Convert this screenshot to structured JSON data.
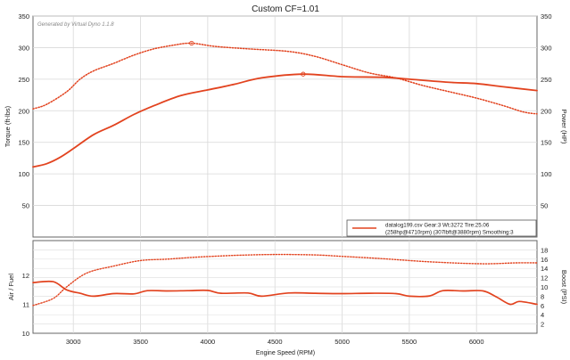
{
  "chart_data": [
    {
      "type": "line",
      "title": "Custom CF=1.01",
      "watermark": "Generated by Virtual Dyno 1.1.8",
      "ylabel_left": "Torque (ft-lbs)",
      "ylabel_right": "Power (HP)",
      "xlim": [
        2700,
        6450
      ],
      "ylim": [
        0,
        350
      ],
      "x_ticks": [
        3000,
        3500,
        4000,
        4500,
        5000,
        5500,
        6000
      ],
      "y_ticks": [
        50,
        100,
        150,
        200,
        250,
        300,
        350
      ],
      "grid": true,
      "legend": {
        "placement": "bottom-right",
        "line1": "datalog199.csv Gear:3 Wt:3272 Tire:25.06",
        "line2": "(258hp@4710rpm) (307lbft@3880rpm) Smoothing:3"
      },
      "series": [
        {
          "style": "solid",
          "color": "#e2431f",
          "peak": [
            4710,
            258
          ],
          "points": [
            [
              2700,
              111
            ],
            [
              2800,
              116
            ],
            [
              2900,
              126
            ],
            [
              3000,
              140
            ],
            [
              3150,
              162
            ],
            [
              3300,
              177
            ],
            [
              3450,
              194
            ],
            [
              3600,
              208
            ],
            [
              3800,
              224
            ],
            [
              4000,
              233
            ],
            [
              4200,
              242
            ],
            [
              4400,
              252
            ],
            [
              4710,
              258
            ],
            [
              5000,
              254
            ],
            [
              5300,
              253
            ],
            [
              5500,
              250
            ],
            [
              5800,
              245
            ],
            [
              6000,
              243
            ],
            [
              6200,
              238
            ],
            [
              6450,
              232
            ]
          ]
        },
        {
          "style": "dotted",
          "color": "#e2431f",
          "peak": [
            3880,
            307
          ],
          "points": [
            [
              2700,
              203
            ],
            [
              2800,
              210
            ],
            [
              2950,
              230
            ],
            [
              3050,
              250
            ],
            [
              3150,
              263
            ],
            [
              3300,
              275
            ],
            [
              3450,
              288
            ],
            [
              3600,
              298
            ],
            [
              3750,
              304
            ],
            [
              3880,
              307
            ],
            [
              4050,
              302
            ],
            [
              4300,
              298
            ],
            [
              4600,
              294
            ],
            [
              4800,
              286
            ],
            [
              5000,
              273
            ],
            [
              5200,
              260
            ],
            [
              5400,
              252
            ],
            [
              5600,
              240
            ],
            [
              5800,
              230
            ],
            [
              6000,
              220
            ],
            [
              6200,
              208
            ],
            [
              6350,
              198
            ],
            [
              6450,
              195
            ]
          ]
        }
      ]
    },
    {
      "type": "line",
      "xlabel": "Engine Speed (RPM)",
      "ylabel_left": "Air / Fuel",
      "ylabel_right": "Boost (PSI)",
      "xlim": [
        2700,
        6450
      ],
      "x_ticks": [
        3000,
        3500,
        4000,
        4500,
        5000,
        5500,
        6000
      ],
      "ylim_left": [
        10,
        13.2
      ],
      "y_ticks_left": [
        10,
        11,
        12
      ],
      "ylim_right": [
        0,
        20
      ],
      "y_ticks_right": [
        2,
        4,
        6,
        8,
        10,
        12,
        14,
        16,
        18
      ],
      "grid": true,
      "series": [
        {
          "style": "solid",
          "axis": "left",
          "color": "#e2431f",
          "points": [
            [
              2700,
              11.75
            ],
            [
              2850,
              11.78
            ],
            [
              2950,
              11.5
            ],
            [
              3050,
              11.38
            ],
            [
              3150,
              11.28
            ],
            [
              3300,
              11.37
            ],
            [
              3450,
              11.36
            ],
            [
              3550,
              11.47
            ],
            [
              3700,
              11.46
            ],
            [
              3850,
              11.47
            ],
            [
              4000,
              11.48
            ],
            [
              4100,
              11.38
            ],
            [
              4300,
              11.39
            ],
            [
              4400,
              11.28
            ],
            [
              4600,
              11.39
            ],
            [
              4800,
              11.38
            ],
            [
              5000,
              11.37
            ],
            [
              5200,
              11.38
            ],
            [
              5400,
              11.37
            ],
            [
              5500,
              11.28
            ],
            [
              5650,
              11.29
            ],
            [
              5750,
              11.47
            ],
            [
              5900,
              11.46
            ],
            [
              6050,
              11.46
            ],
            [
              6150,
              11.25
            ],
            [
              6250,
              11.0
            ],
            [
              6320,
              11.1
            ],
            [
              6450,
              11.0
            ]
          ]
        },
        {
          "style": "dotted",
          "axis": "right",
          "color": "#e2431f",
          "points": [
            [
              2700,
              6
            ],
            [
              2850,
              7.5
            ],
            [
              2950,
              10
            ],
            [
              3100,
              13
            ],
            [
              3300,
              14.5
            ],
            [
              3500,
              15.7
            ],
            [
              3700,
              16.0
            ],
            [
              3900,
              16.4
            ],
            [
              4200,
              16.8
            ],
            [
              4500,
              17.0
            ],
            [
              4800,
              16.9
            ],
            [
              5000,
              16.6
            ],
            [
              5300,
              16.1
            ],
            [
              5600,
              15.5
            ],
            [
              5900,
              15.1
            ],
            [
              6100,
              15.0
            ],
            [
              6300,
              15.2
            ],
            [
              6450,
              15.2
            ]
          ]
        }
      ]
    }
  ]
}
